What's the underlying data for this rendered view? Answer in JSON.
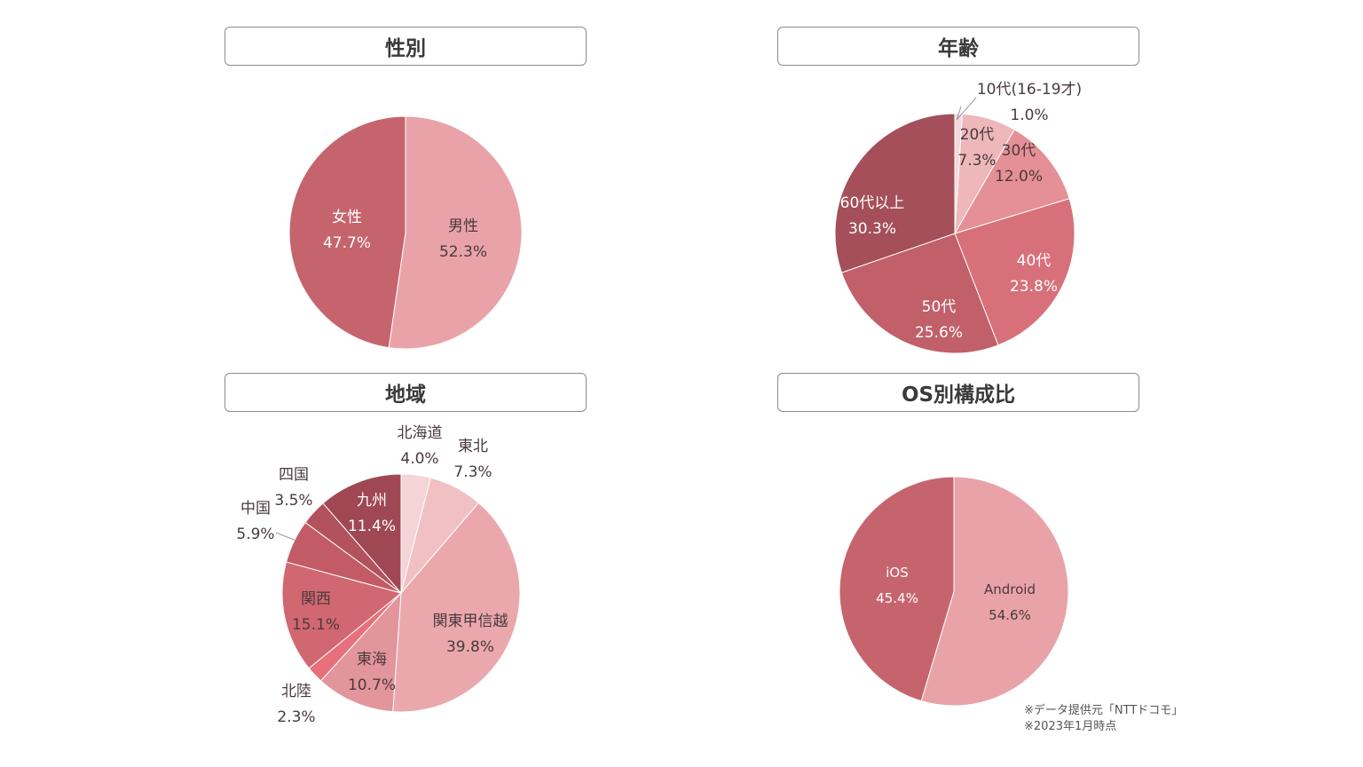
{
  "chart_data": [
    {
      "type": "pie",
      "title": "性別",
      "slices": [
        {
          "label": "男性",
          "value": 52.3,
          "pct": "52.3%",
          "color": "#e9a3a8"
        },
        {
          "label": "女性",
          "value": 47.7,
          "pct": "47.7%",
          "color": "#c6646e"
        }
      ]
    },
    {
      "type": "pie",
      "title": "年齢",
      "slices": [
        {
          "label": "10代(16-19才)",
          "value": 1.0,
          "pct": "1.0%",
          "color": "#f4d8da"
        },
        {
          "label": "20代",
          "value": 7.3,
          "pct": "7.3%",
          "color": "#eeb7ba"
        },
        {
          "label": "30代",
          "value": 12.0,
          "pct": "12.0%",
          "color": "#e58f96"
        },
        {
          "label": "40代",
          "value": 23.8,
          "pct": "23.8%",
          "color": "#d8707a"
        },
        {
          "label": "50代",
          "value": 25.6,
          "pct": "25.6%",
          "color": "#c2606a"
        },
        {
          "label": "60代以上",
          "value": 30.3,
          "pct": "30.3%",
          "color": "#a44f59"
        }
      ]
    },
    {
      "type": "pie",
      "title": "地域",
      "slices": [
        {
          "label": "北海道",
          "value": 4.0,
          "pct": "4.0%",
          "color": "#f4d4d6"
        },
        {
          "label": "東北",
          "value": 7.3,
          "pct": "7.3%",
          "color": "#f0c0c3"
        },
        {
          "label": "関東甲信越",
          "value": 39.8,
          "pct": "39.8%",
          "color": "#eaa8ad"
        },
        {
          "label": "東海",
          "value": 10.7,
          "pct": "10.7%",
          "color": "#e2959b"
        },
        {
          "label": "北陸",
          "value": 2.3,
          "pct": "2.3%",
          "color": "#e7707b"
        },
        {
          "label": "関西",
          "value": 15.1,
          "pct": "15.1%",
          "color": "#d16771"
        },
        {
          "label": "中国",
          "value": 5.9,
          "pct": "5.9%",
          "color": "#c25b65"
        },
        {
          "label": "四国",
          "value": 3.5,
          "pct": "3.5%",
          "color": "#b2525c"
        },
        {
          "label": "九州",
          "value": 11.4,
          "pct": "11.4%",
          "color": "#9f4853"
        }
      ]
    },
    {
      "type": "pie",
      "title": "OS別構成比",
      "slices": [
        {
          "label": "Android",
          "value": 54.6,
          "pct": "54.6%",
          "color": "#e9a3a8"
        },
        {
          "label": "iOS",
          "value": 45.4,
          "pct": "45.4%",
          "color": "#c6646e"
        }
      ]
    }
  ],
  "footnote": {
    "line1": "※データ提供元「NTTドコモ」",
    "line2": "※2023年1月時点"
  }
}
